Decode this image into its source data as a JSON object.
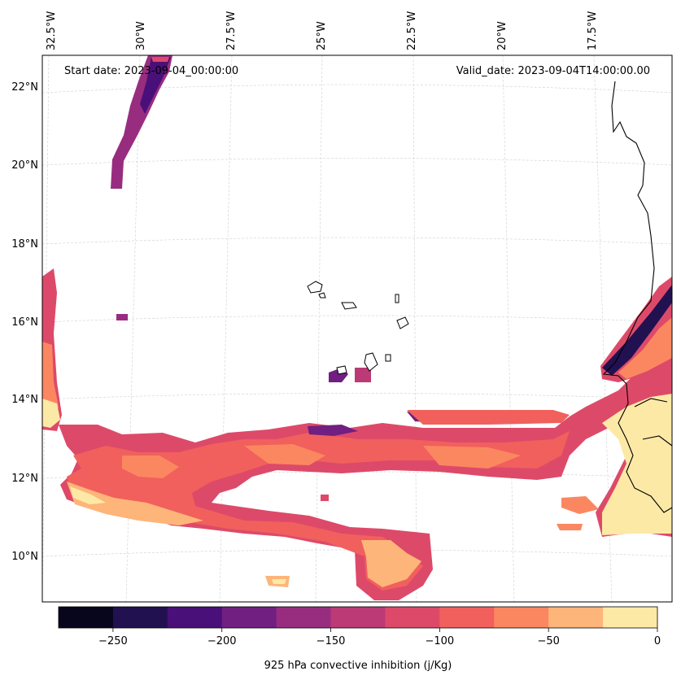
{
  "header": {
    "start_date": "Start date: 2023-09-04_00:00:00",
    "valid_date": "Valid_date: 2023-09-04T14:00:00.00"
  },
  "axes": {
    "lon_labels": [
      "32.5°W",
      "30°W",
      "27.5°W",
      "25°W",
      "22.5°W",
      "20°W",
      "17.5°W"
    ],
    "lat_labels": [
      "22°N",
      "20°N",
      "18°N",
      "16°N",
      "14°N",
      "12°N",
      "10°N"
    ]
  },
  "colorbar": {
    "label": "925 hPa convective inhibition (j/Kg)",
    "tick_labels": [
      "−250",
      "−200",
      "−150",
      "−100",
      "−50",
      "0"
    ],
    "min": -275,
    "max": 0,
    "bins": [
      {
        "range": [
          -275,
          -250
        ],
        "color": "#07061c"
      },
      {
        "range": [
          -250,
          -225
        ],
        "color": "#221150"
      },
      {
        "range": [
          -225,
          -200
        ],
        "color": "#4a1079"
      },
      {
        "range": [
          -200,
          -175
        ],
        "color": "#711f81"
      },
      {
        "range": [
          -175,
          -150
        ],
        "color": "#982d80"
      },
      {
        "range": [
          -150,
          -125
        ],
        "color": "#bc3a76"
      },
      {
        "range": [
          -125,
          -100
        ],
        "color": "#dd4a69"
      },
      {
        "range": [
          -100,
          -75
        ],
        "color": "#f1605d"
      },
      {
        "range": [
          -75,
          -50
        ],
        "color": "#fb8761"
      },
      {
        "range": [
          -50,
          -25
        ],
        "color": "#feb57a"
      },
      {
        "range": [
          -25,
          0
        ],
        "color": "#fde9a6"
      }
    ]
  }
}
